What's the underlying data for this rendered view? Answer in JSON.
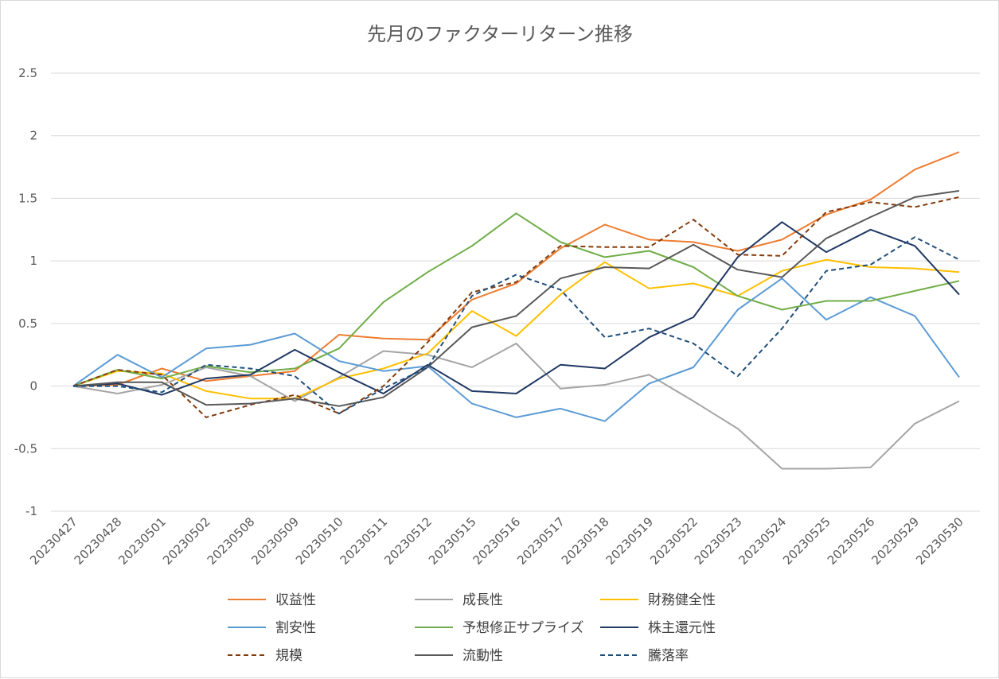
{
  "chart_data": {
    "type": "line",
    "title": "先月のファクターリターン推移",
    "xlabel": "",
    "ylabel": "",
    "ylim": [
      -1,
      2.5
    ],
    "yticks": [
      "2.5",
      "2",
      "1.5",
      "1",
      "0.5",
      "0",
      "-0.5",
      "-1"
    ],
    "grid": true,
    "legend_position": "bottom",
    "categories": [
      "20230427",
      "20230428",
      "20230501",
      "20230502",
      "20230508",
      "20230509",
      "20230510",
      "20230511",
      "20230512",
      "20230515",
      "20230516",
      "20230517",
      "20230518",
      "20230519",
      "20230522",
      "20230523",
      "20230524",
      "20230525",
      "20230526",
      "20230529",
      "20230530"
    ],
    "series": [
      {
        "name": "収益性",
        "color": "#ED7D31",
        "dash": "solid",
        "values": [
          0,
          0.01,
          0.14,
          0.04,
          0.08,
          0.12,
          0.41,
          0.38,
          0.37,
          0.69,
          0.82,
          1.1,
          1.29,
          1.17,
          1.15,
          1.08,
          1.17,
          1.37,
          1.49,
          1.73,
          1.87
        ]
      },
      {
        "name": "成長性",
        "color": "#A5A5A5",
        "dash": "solid",
        "values": [
          0,
          -0.06,
          0.01,
          0.15,
          0.08,
          -0.12,
          0.07,
          0.28,
          0.25,
          0.15,
          0.34,
          -0.02,
          0.01,
          0.09,
          -0.12,
          -0.34,
          -0.66,
          -0.66,
          -0.65,
          -0.3,
          -0.12
        ]
      },
      {
        "name": "財務健全性",
        "color": "#FFC000",
        "dash": "solid",
        "values": [
          0,
          0.12,
          0.1,
          -0.04,
          -0.1,
          -0.1,
          0.06,
          0.14,
          0.26,
          0.6,
          0.4,
          0.73,
          0.99,
          0.78,
          0.82,
          0.72,
          0.92,
          1.01,
          0.95,
          0.94,
          0.91
        ]
      },
      {
        "name": "割安性",
        "color": "#5B9BD5",
        "dash": "solid",
        "values": [
          0,
          0.25,
          0.07,
          0.3,
          0.33,
          0.42,
          0.2,
          0.12,
          0.16,
          -0.14,
          -0.25,
          -0.18,
          -0.28,
          0.02,
          0.15,
          0.61,
          0.86,
          0.53,
          0.71,
          0.56,
          0.07
        ]
      },
      {
        "name": "予想修正サプライズ",
        "color": "#70AD47",
        "dash": "solid",
        "values": [
          0,
          0.13,
          0.06,
          0.16,
          0.11,
          0.14,
          0.3,
          0.67,
          0.91,
          1.12,
          1.38,
          1.15,
          1.03,
          1.08,
          0.95,
          0.72,
          0.61,
          0.68,
          0.68,
          0.76,
          0.84
        ]
      },
      {
        "name": "株主還元性",
        "color": "#203864",
        "dash": "solid",
        "values": [
          0,
          0.02,
          -0.07,
          0.06,
          0.09,
          0.29,
          0.11,
          -0.06,
          0.17,
          -0.04,
          -0.06,
          0.17,
          0.14,
          0.39,
          0.55,
          1.03,
          1.31,
          1.07,
          1.25,
          1.12,
          0.73
        ]
      },
      {
        "name": "規模",
        "color": "#843C0C",
        "dash": "dashed",
        "values": [
          0,
          0.13,
          0.09,
          -0.25,
          -0.15,
          -0.07,
          -0.22,
          0.0,
          0.35,
          0.75,
          0.83,
          1.12,
          1.11,
          1.11,
          1.33,
          1.05,
          1.04,
          1.39,
          1.47,
          1.43,
          1.51
        ]
      },
      {
        "name": "流動性",
        "color": "#595959",
        "dash": "solid",
        "values": [
          0,
          0.03,
          0.03,
          -0.15,
          -0.14,
          -0.1,
          -0.16,
          -0.09,
          0.15,
          0.47,
          0.56,
          0.86,
          0.95,
          0.94,
          1.13,
          0.93,
          0.87,
          1.18,
          1.35,
          1.51,
          1.56
        ]
      },
      {
        "name": "騰落率",
        "color": "#1F4E79",
        "dash": "dashed",
        "values": [
          0,
          0.0,
          -0.05,
          0.17,
          0.14,
          0.08,
          -0.22,
          -0.02,
          0.15,
          0.72,
          0.89,
          0.77,
          0.39,
          0.46,
          0.34,
          0.08,
          0.46,
          0.92,
          0.97,
          1.19,
          1.01
        ]
      }
    ]
  }
}
